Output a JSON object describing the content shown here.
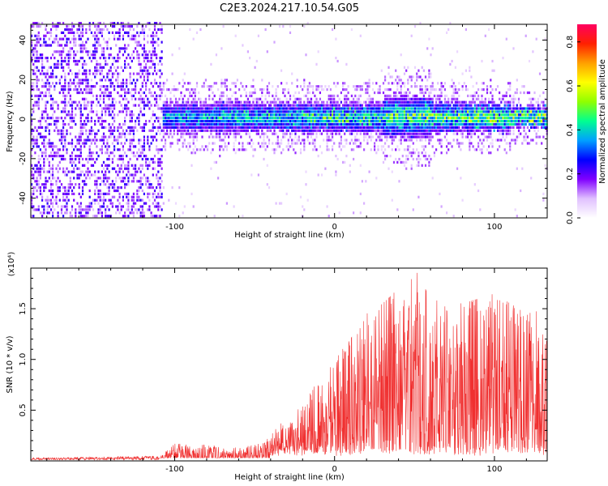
{
  "title": "C2E3.2024.217.10.54.G05",
  "chart_data": [
    {
      "type": "heatmap",
      "xlabel": "Height of straight line (km)",
      "ylabel": "Frequency (Hz)",
      "xlim": [
        -190,
        133
      ],
      "ylim": [
        -50,
        48
      ],
      "x_ticks": [
        -100,
        0,
        100
      ],
      "y_ticks": [
        -40,
        -20,
        0,
        20,
        40
      ],
      "colorbar": {
        "label": "Normalized spectral amplitude",
        "range": [
          0.0,
          0.88
        ],
        "ticks": [
          0.0,
          0.2,
          0.4,
          0.6,
          0.8
        ],
        "colors": [
          "#ffffff",
          "#e0c0ff",
          "#8000ff",
          "#0000ff",
          "#00a0ff",
          "#00ff90",
          "#90ff00",
          "#ffff00",
          "#ffa000",
          "#ff2000",
          "#ff0060"
        ]
      },
      "features": {
        "broadband_noise_region_x": [
          -190,
          -108
        ],
        "signal_band_center_hz": 0,
        "signal_band_halfwidth_hz": 8,
        "peak_amplitude_region_x": [
          100,
          133
        ]
      },
      "grid": false
    },
    {
      "type": "line",
      "xlabel": "Height of straight line (km)",
      "ylabel": "SNR (10 * v/v)",
      "y_multiplier": "(x10⁴)",
      "xlim": [
        -190,
        133
      ],
      "ylim": [
        0,
        1.9
      ],
      "x_ticks": [
        -100,
        0,
        100
      ],
      "y_ticks": [
        0.5,
        1.0,
        1.5
      ],
      "y_tick_labels": [
        "0.5",
        "1.0",
        "1.5"
      ],
      "color": "#f03030",
      "envelope": {
        "x": [
          -190,
          -110,
          -105,
          -100,
          -80,
          -60,
          -43,
          -35,
          -20,
          -10,
          0,
          10,
          20,
          30,
          40,
          50,
          60,
          80,
          100,
          120,
          133
        ],
        "y": [
          0.03,
          0.05,
          0.1,
          0.17,
          0.16,
          0.13,
          0.2,
          0.35,
          0.55,
          0.8,
          1.0,
          1.2,
          1.45,
          1.55,
          1.7,
          1.9,
          1.6,
          1.55,
          1.65,
          1.45,
          1.5
        ]
      },
      "grid": false
    }
  ]
}
